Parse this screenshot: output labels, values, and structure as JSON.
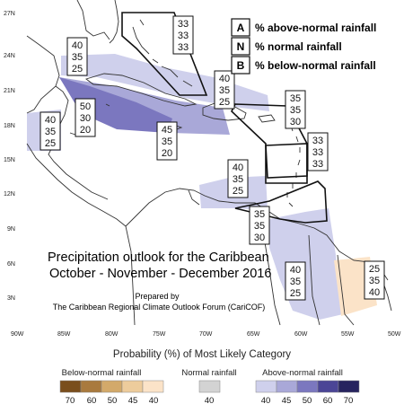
{
  "map": {
    "title_line1": "Precipitation outlook for the Caribbean",
    "title_line2": "October - November - December 2016",
    "prepared_line1": "Prepared by",
    "prepared_line2": "The Caribbean Regional Climate Outlook Forum (CariCOF)",
    "lat_ticks": [
      "27N",
      "24N",
      "21N",
      "18N",
      "15N",
      "12N",
      "9N",
      "6N",
      "3N"
    ],
    "lon_ticks": [
      "90W",
      "85W",
      "80W",
      "75W",
      "70W",
      "65W",
      "60W",
      "55W",
      "50W"
    ],
    "colors": {
      "above_40": "#cfd0ec",
      "above_45": "#a9a8d8",
      "above_50": "#7b77bf",
      "above_60": "#4b4596",
      "above_70": "#27245f",
      "below_40": "#fbe3c8",
      "normal": "#d3d3d3",
      "land_outline": "#333333"
    }
  },
  "key": {
    "items": [
      {
        "letter": "A",
        "text": "% above-normal rainfall"
      },
      {
        "letter": "N",
        "text": "% normal rainfall"
      },
      {
        "letter": "B",
        "text": "% below-normal rainfall"
      }
    ]
  },
  "boxes": [
    {
      "id": "bahamas",
      "values": [
        "33",
        "33",
        "33"
      ]
    },
    {
      "id": "gulf-yucatan",
      "values": [
        "40",
        "35",
        "25"
      ]
    },
    {
      "id": "cuba-east",
      "values": [
        "40",
        "35",
        "25"
      ]
    },
    {
      "id": "cayman",
      "values": [
        "50",
        "30",
        "20"
      ]
    },
    {
      "id": "central-america",
      "values": [
        "40",
        "35",
        "25"
      ]
    },
    {
      "id": "jamaica-south",
      "values": [
        "45",
        "35",
        "20"
      ]
    },
    {
      "id": "leewards-north",
      "values": [
        "35",
        "35",
        "30"
      ]
    },
    {
      "id": "leewards-east",
      "values": [
        "33",
        "33",
        "33"
      ]
    },
    {
      "id": "caribbean-south",
      "values": [
        "40",
        "35",
        "25"
      ]
    },
    {
      "id": "trinidad-guyana",
      "values": [
        "35",
        "35",
        "30"
      ]
    },
    {
      "id": "suriname",
      "values": [
        "40",
        "35",
        "25"
      ]
    },
    {
      "id": "french-guiana",
      "values": [
        "25",
        "35",
        "40"
      ]
    }
  ],
  "colorbar": {
    "title": "Probability (%) of Most Likely Category",
    "below": {
      "label": "Below-normal rainfall",
      "ticks": [
        "70",
        "60",
        "50",
        "45",
        "40"
      ]
    },
    "normal": {
      "label": "Normal rainfall",
      "ticks": [
        "40"
      ]
    },
    "above": {
      "label": "Above-normal rainfall",
      "ticks": [
        "40",
        "45",
        "50",
        "60",
        "70"
      ]
    }
  }
}
